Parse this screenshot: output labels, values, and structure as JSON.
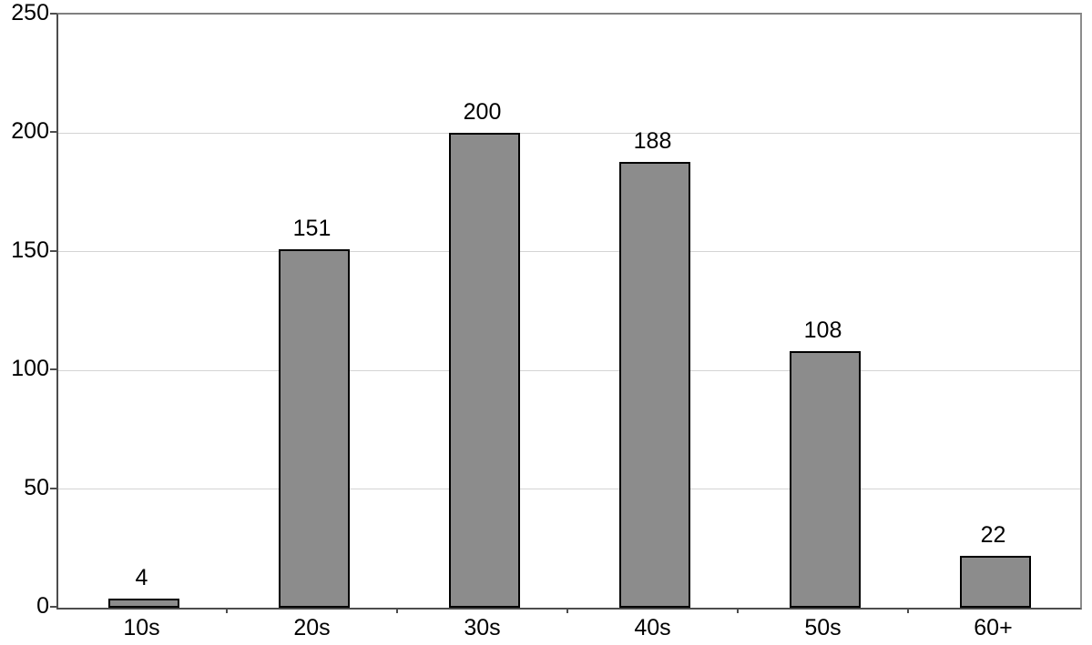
{
  "chart_data": {
    "type": "bar",
    "title": "",
    "xlabel": "",
    "ylabel": "",
    "categories": [
      "10s",
      "20s",
      "30s",
      "40s",
      "50s",
      "60+"
    ],
    "values": [
      4,
      151,
      200,
      188,
      108,
      22
    ],
    "data_labels": [
      "4",
      "151",
      "200",
      "188",
      "108",
      "22"
    ],
    "ylim": [
      0,
      250
    ],
    "yticks": [
      0,
      50,
      100,
      150,
      200,
      250
    ],
    "ytick_labels": [
      "0",
      "50",
      "100",
      "150",
      "200",
      "250"
    ],
    "grid": true,
    "legend": "none",
    "colors": {
      "bar_fill": "#8c8c8c",
      "bar_border": "#000000",
      "gridline": "#d4d4d4",
      "axis": "#4d4d4d",
      "plot_border": "#808080",
      "background": "#ffffff",
      "text": "#000000"
    }
  }
}
